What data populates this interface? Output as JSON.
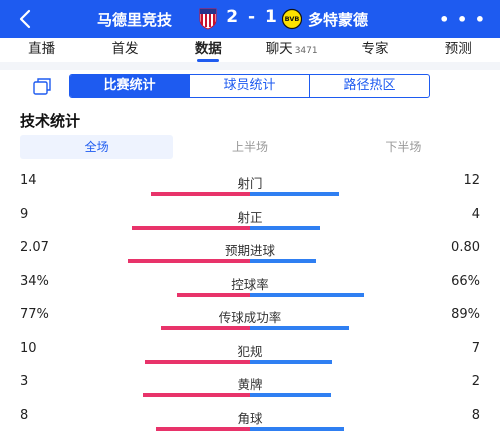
{
  "header": {
    "home_team": "马德里竞技",
    "away_team": "多特蒙德",
    "score": "2 - 1",
    "back_icon": "back-arrow-icon",
    "more_icon": "more-dots-icon",
    "home_crest": "atletico-madrid-crest",
    "away_crest": "bvb-crest",
    "colors": {
      "bar": "#1e5bf0",
      "home": "#e8336a",
      "away": "#2f7ff2"
    }
  },
  "tabs": [
    {
      "label": "直播",
      "count": ""
    },
    {
      "label": "首发",
      "count": ""
    },
    {
      "label": "数据",
      "count": ""
    },
    {
      "label": "聊天",
      "count": "3471"
    },
    {
      "label": "专家",
      "count": ""
    },
    {
      "label": "预测",
      "count": ""
    }
  ],
  "active_tab": "数据",
  "sub_tabs": [
    "比赛统计",
    "球员统计",
    "路径热区"
  ],
  "active_sub_tab": "比赛统计",
  "section_title": "技术统计",
  "periods": [
    "全场",
    "上半场",
    "下半场"
  ],
  "active_period": "全场",
  "stats": [
    {
      "label": "射门",
      "home": "14",
      "away": "12",
      "home_share": 0.54,
      "away_share": 0.46
    },
    {
      "label": "射正",
      "home": "9",
      "away": "4",
      "home_share": 0.69,
      "away_share": 0.31
    },
    {
      "label": "预期进球",
      "home": "2.07",
      "away": "0.80",
      "home_share": 0.72,
      "away_share": 0.28
    },
    {
      "label": "控球率",
      "home": "34%",
      "away": "66%",
      "home_share": 0.34,
      "away_share": 0.66
    },
    {
      "label": "传球成功率",
      "home": "77%",
      "away": "89%",
      "home_share": 0.46,
      "away_share": 0.54
    },
    {
      "label": "犯规",
      "home": "10",
      "away": "7",
      "home_share": 0.59,
      "away_share": 0.41
    },
    {
      "label": "黄牌",
      "home": "3",
      "away": "2",
      "home_share": 0.6,
      "away_share": 0.4
    },
    {
      "label": "角球",
      "home": "8",
      "away": "8",
      "home_share": 0.5,
      "away_share": 0.5
    }
  ]
}
